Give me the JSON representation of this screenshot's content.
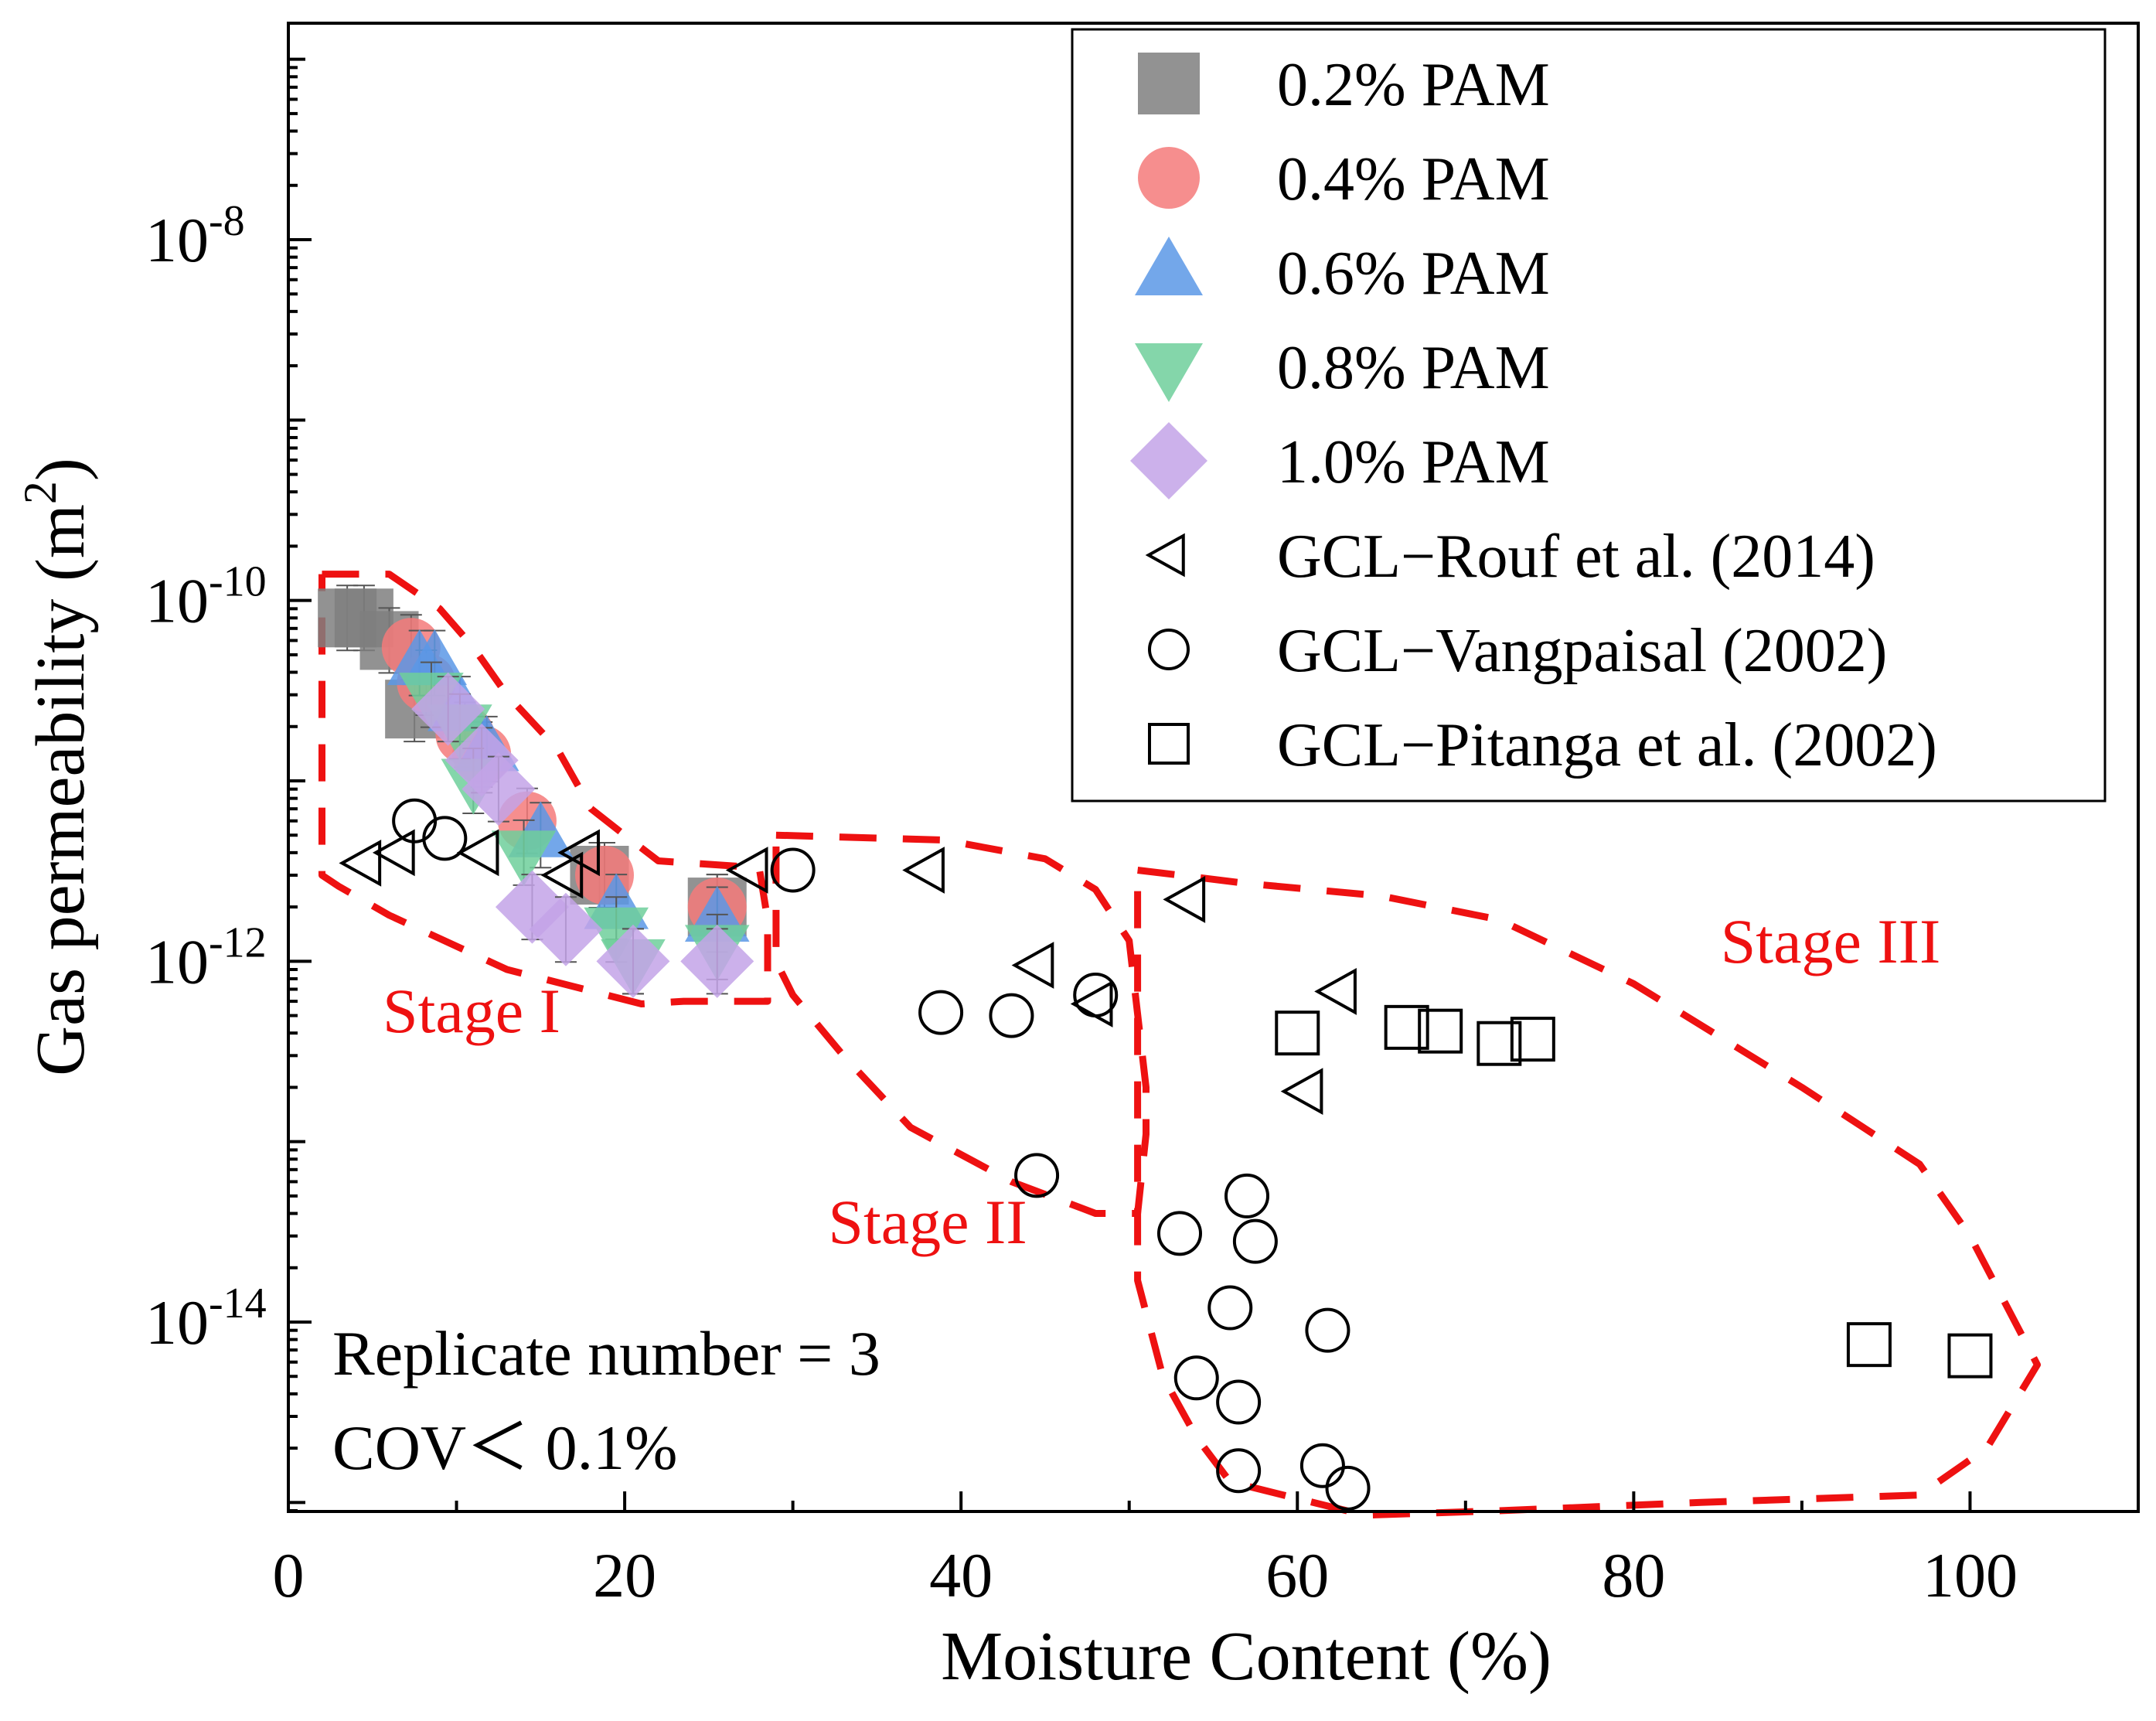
{
  "chart_data": {
    "type": "scatter",
    "xlabel": "Moisture Content (%)",
    "ylabel_base": "Gas permeability (m",
    "ylabel_sup": "2",
    "ylabel_close": ")",
    "xlim": [
      0,
      110
    ],
    "ylim_log10": [
      -15.05,
      -6.8
    ],
    "x_ticks": [
      "0",
      "20",
      "40",
      "60",
      "80",
      "100"
    ],
    "x_tick_values": [
      0,
      20,
      40,
      60,
      80,
      100
    ],
    "y_tick_base": "10",
    "y_tick_exponents": [
      "-8",
      "-10",
      "-12",
      "-14"
    ],
    "y_tick_values_log10": [
      -8,
      -10,
      -12,
      -14
    ],
    "colors": {
      "pam02": "#7f7f7f",
      "pam04": "#f47a7a",
      "pam06": "#5b98e6",
      "pam08": "#6fcf9b",
      "pam10": "#c3a3e8",
      "stage": "#ee1111"
    },
    "series": [
      {
        "name": "0.2% PAM",
        "marker": "square-filled",
        "color_key": "pam02",
        "x": [
          3.5,
          4.5,
          6.0,
          7.5,
          18.5,
          25.5
        ],
        "y": [
          8e-11,
          8e-11,
          6e-11,
          2.5e-11,
          3e-12,
          2e-12
        ]
      },
      {
        "name": "0.4% PAM",
        "marker": "circle-filled",
        "color_key": "pam04",
        "x": [
          7.3,
          8.2,
          10.5,
          11.5,
          14.2,
          18.8,
          25.5
        ],
        "y": [
          5.5e-11,
          3.5e-11,
          1.8e-11,
          1.4e-11,
          6e-12,
          3e-12,
          2e-12
        ]
      },
      {
        "name": "0.6% PAM",
        "marker": "triangle-up-filled",
        "color_key": "pam06",
        "x": [
          7.8,
          8.7,
          10.2,
          11.8,
          15.0,
          19.5,
          25.5
        ],
        "y": [
          4.5e-11,
          4.5e-11,
          2.5e-11,
          1.5e-11,
          5e-12,
          2e-12,
          1.7e-12
        ]
      },
      {
        "name": "0.8% PAM",
        "marker": "triangle-down-filled",
        "color_key": "pam08",
        "x": [
          8.5,
          10.2,
          11.0,
          14.0,
          19.5,
          20.5,
          25.5
        ],
        "y": [
          3e-11,
          2e-11,
          1e-11,
          4e-12,
          1.5e-12,
          1e-12,
          1.2e-12
        ]
      },
      {
        "name": "1.0% PAM",
        "marker": "diamond-filled",
        "color_key": "pam10",
        "x": [
          9.5,
          11.5,
          12.5,
          14.5,
          16.5,
          20.5,
          25.5
        ],
        "y": [
          2.5e-11,
          1.3e-11,
          9e-12,
          2e-12,
          1.5e-12,
          1e-12,
          1e-12
        ]
      },
      {
        "name": "GCL−Rouf et al. (2014)",
        "marker": "triangle-left-open",
        "color_key": "",
        "x": [
          4.5,
          6.5,
          11.5,
          16.5,
          17.5,
          27.5,
          38.0,
          44.5,
          48.0,
          53.5,
          60.5,
          62.5
        ],
        "y": [
          3.5e-12,
          4e-12,
          4e-12,
          3e-12,
          4e-12,
          3.2e-12,
          3.2e-12,
          9.5e-13,
          5.8e-13,
          2.2e-12,
          1.9e-13,
          6.8e-13
        ]
      },
      {
        "name": "GCL−Vangpaisal (2002)",
        "marker": "circle-open",
        "color_key": "",
        "x": [
          7.5,
          9.3,
          30.0,
          38.8,
          43.0,
          44.5,
          48.0,
          53.0,
          54.0,
          56.0,
          56.5,
          56.5,
          57.0,
          57.5,
          61.5,
          61.8,
          63.0
        ],
        "y": [
          6e-12,
          4.8e-12,
          3.2e-12,
          5.2e-13,
          5e-13,
          6.5e-14,
          6.5e-13,
          3.1e-14,
          4.9e-15,
          1.2e-14,
          3.6e-15,
          1.5e-15,
          5e-14,
          2.8e-14,
          1.6e-15,
          9e-15,
          1.2e-15
        ]
      },
      {
        "name": "GCL−Pitanga et al. (2002)",
        "marker": "square-open",
        "color_key": "",
        "x": [
          60.0,
          66.5,
          68.5,
          72.0,
          74.0,
          94.0,
          100.0
        ],
        "y": [
          4e-13,
          4.3e-13,
          4.1e-13,
          3.5e-13,
          3.7e-13,
          7.5e-15,
          6.5e-15
        ]
      }
    ],
    "annotations": {
      "stage1": "Stage I",
      "stage2": "Stage II",
      "stage3": "Stage III",
      "replicate": "Replicate number = 3",
      "cov": "COV＜ 0.1%"
    },
    "stage_regions": {
      "stage1": [
        [
          2,
          1.4e-10
        ],
        [
          6,
          1.4e-10
        ],
        [
          9,
          9e-11
        ],
        [
          11,
          5.5e-11
        ],
        [
          13,
          3e-11
        ],
        [
          16,
          1.5e-11
        ],
        [
          18,
          7e-12
        ],
        [
          20,
          5e-12
        ],
        [
          22,
          3.6e-12
        ],
        [
          28,
          3.3e-12
        ],
        [
          28.5,
          1.7e-12
        ],
        [
          28.5,
          6e-13
        ],
        [
          23.5,
          6e-13
        ],
        [
          21,
          5.8e-13
        ],
        [
          13,
          9e-13
        ],
        [
          6,
          1.8e-12
        ],
        [
          3,
          2.6e-12
        ],
        [
          2,
          3e-12
        ],
        [
          2,
          1.4e-10
        ]
      ],
      "stage2": [
        [
          29,
          5e-12
        ],
        [
          39,
          4.7e-12
        ],
        [
          45,
          3.7e-12
        ],
        [
          48,
          2.5e-12
        ],
        [
          50,
          1.3e-12
        ],
        [
          51,
          2e-13
        ],
        [
          51,
          1.1e-13
        ],
        [
          50.5,
          4e-14
        ],
        [
          48,
          4e-14
        ],
        [
          43,
          6e-14
        ],
        [
          37,
          1.2e-13
        ],
        [
          33,
          3e-13
        ],
        [
          30,
          6.5e-13
        ],
        [
          29,
          1e-12
        ],
        [
          29,
          5e-12
        ]
      ],
      "stage3": [
        [
          50.5,
          3.2e-12
        ],
        [
          53,
          3e-12
        ],
        [
          57,
          2.7e-12
        ],
        [
          65,
          2.3e-12
        ],
        [
          72,
          1.7e-12
        ],
        [
          80,
          7.5e-13
        ],
        [
          90,
          2e-13
        ],
        [
          97,
          7.5e-14
        ],
        [
          100,
          3e-14
        ],
        [
          104,
          5.8e-15
        ],
        [
          101,
          2e-15
        ],
        [
          97,
          1.1e-15
        ],
        [
          84,
          1e-15
        ],
        [
          72,
          9e-16
        ],
        [
          64,
          8.5e-16
        ],
        [
          56,
          1.3e-15
        ],
        [
          54,
          2.3e-15
        ],
        [
          52,
          5e-15
        ],
        [
          50.5,
          1.7e-14
        ],
        [
          50.5,
          3.2e-12
        ]
      ]
    }
  }
}
